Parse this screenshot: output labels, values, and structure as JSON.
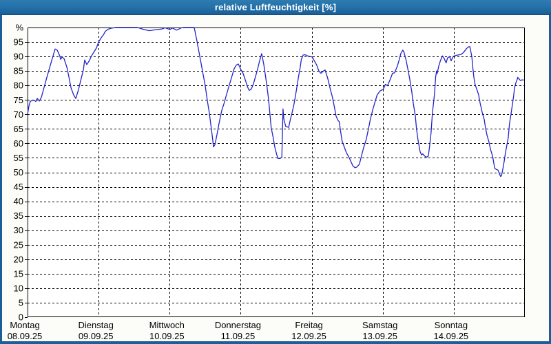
{
  "window": {
    "title": "relative Luftfeuchtigkeit [%]"
  },
  "colors": {
    "titlebar": "#2270a8",
    "window_border": "#1d5d98",
    "content_bg": "#fcfcf8",
    "plot_bg": "#ffffff",
    "grid": "#000000",
    "line": "#2222cc"
  },
  "chart_data": {
    "type": "line",
    "title": "relative Luftfeuchtigkeit [%]",
    "ylabel_top": "%",
    "ylim": [
      0,
      100
    ],
    "xlim_hours": [
      0,
      168
    ],
    "grid": true,
    "y_ticks": [
      0,
      5,
      10,
      15,
      20,
      25,
      30,
      35,
      40,
      45,
      50,
      55,
      60,
      65,
      70,
      75,
      80,
      85,
      90,
      95
    ],
    "days": [
      {
        "label": "Montag",
        "date": "08.09.25"
      },
      {
        "label": "Dienstag",
        "date": "09.09.25"
      },
      {
        "label": "Mittwoch",
        "date": "10.09.25"
      },
      {
        "label": "Donnerstag",
        "date": "11.09.25"
      },
      {
        "label": "Freitag",
        "date": "12.09.25"
      },
      {
        "label": "Samstag",
        "date": "13.09.25"
      },
      {
        "label": "Sonntag",
        "date": "14.09.25"
      }
    ],
    "series": [
      {
        "name": "relative Luftfeuchtigkeit",
        "color": "#2222cc",
        "points_hour_value": [
          [
            0,
            70
          ],
          [
            0.5,
            73
          ],
          [
            0.9,
            74.5
          ],
          [
            1.9,
            75
          ],
          [
            2.8,
            74.5
          ],
          [
            3.3,
            75.5
          ],
          [
            4,
            74.6
          ],
          [
            4.7,
            76
          ],
          [
            5.3,
            78.3
          ],
          [
            6.5,
            82.7
          ],
          [
            7.7,
            87
          ],
          [
            8.6,
            90.2
          ],
          [
            9.3,
            92.6
          ],
          [
            10,
            92.2
          ],
          [
            10.9,
            90.2
          ],
          [
            11.2,
            89
          ],
          [
            11.6,
            89.8
          ],
          [
            12.3,
            89.3
          ],
          [
            13.3,
            86.2
          ],
          [
            14,
            82.7
          ],
          [
            14.7,
            79.1
          ],
          [
            15.6,
            76.7
          ],
          [
            16.3,
            75.5
          ],
          [
            17.2,
            78.5
          ],
          [
            18.2,
            82.7
          ],
          [
            18.9,
            85.5
          ],
          [
            19.3,
            88.8
          ],
          [
            20,
            87.2
          ],
          [
            20.9,
            88.6
          ],
          [
            21.6,
            90.2
          ],
          [
            22.6,
            91.8
          ],
          [
            23.3,
            93
          ],
          [
            24,
            95
          ],
          [
            24.9,
            96.5
          ],
          [
            25.6,
            97.4
          ],
          [
            26.3,
            98.7
          ],
          [
            27.2,
            99.4
          ],
          [
            28.5,
            99.8
          ],
          [
            29.9,
            100
          ],
          [
            37.2,
            100
          ],
          [
            39,
            99.4
          ],
          [
            41.1,
            98.9
          ],
          [
            43,
            99.2
          ],
          [
            45.4,
            99.5
          ],
          [
            46.5,
            99.9
          ],
          [
            48.1,
            99.3
          ],
          [
            48.9,
            99.8
          ],
          [
            50.4,
            99.1
          ],
          [
            52,
            99.9
          ],
          [
            52.7,
            100
          ],
          [
            56.3,
            100
          ],
          [
            57.2,
            95.5
          ],
          [
            58.2,
            90
          ],
          [
            59.1,
            85
          ],
          [
            60,
            80
          ],
          [
            60.7,
            75
          ],
          [
            61.4,
            70.5
          ],
          [
            62.1,
            65
          ],
          [
            62.6,
            61
          ],
          [
            62.8,
            58.8
          ],
          [
            63.3,
            59.5
          ],
          [
            64,
            63
          ],
          [
            64.7,
            67
          ],
          [
            65.6,
            71.3
          ],
          [
            66.3,
            73.5
          ],
          [
            67,
            76
          ],
          [
            67.7,
            78.5
          ],
          [
            68.4,
            81
          ],
          [
            69.1,
            83.4
          ],
          [
            69.8,
            85.8
          ],
          [
            70.5,
            87
          ],
          [
            71.2,
            87.4
          ],
          [
            72.1,
            85.4
          ],
          [
            72.8,
            84.2
          ],
          [
            73.7,
            81.5
          ],
          [
            74.4,
            79.3
          ],
          [
            74.9,
            78.3
          ],
          [
            75.6,
            78.8
          ],
          [
            76.3,
            80.5
          ],
          [
            77,
            83
          ],
          [
            77.7,
            85.5
          ],
          [
            78.4,
            88.5
          ],
          [
            79.1,
            91
          ],
          [
            79.8,
            87.4
          ],
          [
            80.7,
            81.1
          ],
          [
            81.4,
            75.5
          ],
          [
            81.9,
            69.9
          ],
          [
            82.3,
            65.5
          ],
          [
            83,
            61.9
          ],
          [
            83.5,
            58.8
          ],
          [
            84.2,
            56
          ],
          [
            84.6,
            54.8
          ],
          [
            85.3,
            54.8
          ],
          [
            85.9,
            55.2
          ],
          [
            86.3,
            71.9
          ],
          [
            86.6,
            68.3
          ],
          [
            87.2,
            65.9
          ],
          [
            88.2,
            65.5
          ],
          [
            88.8,
            68.3
          ],
          [
            89.4,
            70.7
          ],
          [
            90,
            73.5
          ],
          [
            90.5,
            76.3
          ],
          [
            91,
            79.5
          ],
          [
            91.5,
            82.7
          ],
          [
            92.1,
            86.2
          ],
          [
            92.5,
            89
          ],
          [
            93.1,
            90.5
          ],
          [
            93.8,
            90.6
          ],
          [
            94.6,
            90.2
          ],
          [
            95.4,
            90
          ],
          [
            96.2,
            89.8
          ],
          [
            97,
            88.3
          ],
          [
            97.7,
            87
          ],
          [
            98.4,
            85
          ],
          [
            99.1,
            84.2
          ],
          [
            100,
            85
          ],
          [
            100.5,
            85.4
          ],
          [
            101.4,
            82.5
          ],
          [
            102.3,
            78.7
          ],
          [
            103,
            75.9
          ],
          [
            103.7,
            72.3
          ],
          [
            104.2,
            69.5
          ],
          [
            104.9,
            67.9
          ],
          [
            105.3,
            67.5
          ],
          [
            105.8,
            63.9
          ],
          [
            106.3,
            60.7
          ],
          [
            107,
            58.8
          ],
          [
            107.7,
            56.8
          ],
          [
            108.6,
            55.2
          ],
          [
            109.3,
            53.6
          ],
          [
            110,
            52.1
          ],
          [
            110.7,
            51.6
          ],
          [
            111.2,
            51.8
          ],
          [
            112.1,
            52.8
          ],
          [
            112.8,
            55.6
          ],
          [
            113.5,
            58.4
          ],
          [
            114.4,
            61.2
          ],
          [
            115.1,
            64.7
          ],
          [
            115.8,
            68.3
          ],
          [
            116.7,
            71.9
          ],
          [
            117.4,
            74.3
          ],
          [
            118.1,
            76.7
          ],
          [
            119.1,
            78.1
          ],
          [
            120.2,
            78.7
          ],
          [
            120.9,
            80.4
          ],
          [
            121.6,
            79.9
          ],
          [
            122.6,
            82.3
          ],
          [
            123.3,
            84.2
          ],
          [
            124,
            84.4
          ],
          [
            124.9,
            86.6
          ],
          [
            125.6,
            89
          ],
          [
            126.1,
            91
          ],
          [
            126.8,
            92.2
          ],
          [
            127.2,
            91.4
          ],
          [
            127.9,
            88.6
          ],
          [
            128.6,
            85
          ],
          [
            129.1,
            82.3
          ],
          [
            129.8,
            77.9
          ],
          [
            130.3,
            73.9
          ],
          [
            131,
            69.5
          ],
          [
            131.4,
            65.1
          ],
          [
            131.9,
            61.2
          ],
          [
            132.6,
            57.2
          ],
          [
            133.1,
            56
          ],
          [
            133.5,
            56.4
          ],
          [
            134.2,
            55.6
          ],
          [
            134.7,
            55.2
          ],
          [
            135.4,
            55.6
          ],
          [
            135.8,
            58.8
          ],
          [
            136.3,
            63.5
          ],
          [
            136.8,
            70.7
          ],
          [
            137.5,
            77.1
          ],
          [
            137.9,
            83.1
          ],
          [
            138.2,
            85
          ],
          [
            138.4,
            84.1
          ],
          [
            138.9,
            86.6
          ],
          [
            139.5,
            88.6
          ],
          [
            140.2,
            90.2
          ],
          [
            140.7,
            89.4
          ],
          [
            141.4,
            87.8
          ],
          [
            141.9,
            89.5
          ],
          [
            142.6,
            90
          ],
          [
            143.1,
            88.5
          ],
          [
            143.8,
            90
          ],
          [
            144.2,
            90.2
          ],
          [
            144.9,
            90.4
          ],
          [
            145.9,
            90.6
          ],
          [
            146.6,
            90.8
          ],
          [
            147.3,
            91.4
          ],
          [
            148.2,
            92.6
          ],
          [
            148.9,
            93.3
          ],
          [
            149.4,
            93.4
          ],
          [
            149.6,
            92.6
          ],
          [
            150.1,
            89.8
          ],
          [
            150.5,
            85.4
          ],
          [
            150.8,
            82.7
          ],
          [
            151.2,
            80.3
          ],
          [
            151.9,
            78.3
          ],
          [
            152.4,
            76.7
          ],
          [
            152.9,
            73.9
          ],
          [
            153.6,
            70.7
          ],
          [
            154.3,
            68.2
          ],
          [
            154.7,
            65.5
          ],
          [
            155.2,
            62.9
          ],
          [
            155.9,
            60.4
          ],
          [
            156.4,
            58
          ],
          [
            157.1,
            55.6
          ],
          [
            157.5,
            53.3
          ],
          [
            157.8,
            51.4
          ],
          [
            158.4,
            51
          ],
          [
            158.9,
            50.8
          ],
          [
            159.4,
            49.6
          ],
          [
            159.8,
            48.6
          ],
          [
            160.1,
            48.8
          ],
          [
            160.5,
            50.8
          ],
          [
            161,
            53.6
          ],
          [
            161.4,
            56.4
          ],
          [
            161.9,
            59.2
          ],
          [
            162.4,
            61.9
          ],
          [
            162.8,
            66.7
          ],
          [
            163.3,
            69.9
          ],
          [
            163.8,
            73.5
          ],
          [
            164.2,
            76.3
          ],
          [
            164.5,
            79.1
          ],
          [
            164.9,
            80.7
          ],
          [
            165.4,
            82
          ],
          [
            165.6,
            82.8
          ],
          [
            166.1,
            82.2
          ],
          [
            166.5,
            81.7
          ],
          [
            167,
            81.9
          ],
          [
            167.5,
            81.9
          ]
        ]
      }
    ]
  }
}
